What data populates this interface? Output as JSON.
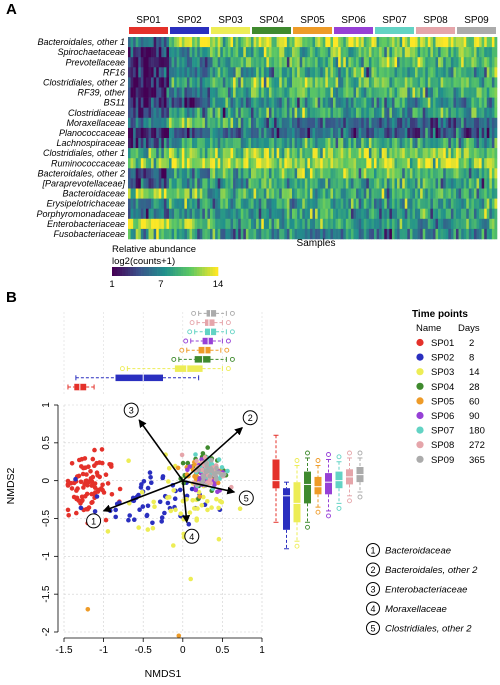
{
  "panels": {
    "a": "A",
    "b": "B"
  },
  "timepoint_colors": {
    "SP01": "#e4312a",
    "SP02": "#2a2fbf",
    "SP03": "#eded55",
    "SP04": "#3f8a2e",
    "SP05": "#ee9b28",
    "SP06": "#9640d6",
    "SP07": "#62d3c4",
    "SP08": "#e5a5aa",
    "SP09": "#ababab"
  },
  "chart_data": [
    {
      "type": "heatmap",
      "columns": [
        "SP01",
        "SP02",
        "SP03",
        "SP04",
        "SP05",
        "SP06",
        "SP07",
        "SP08",
        "SP09"
      ],
      "rows": [
        "Bacteroidales, other 1",
        "Spirochaetaceae",
        "Prevotellaceae",
        "RF16",
        "Clostridiales, other 2",
        "RF39, other",
        "BS11",
        "Clostridiaceae",
        "Moraxellaceae",
        "Planococcaceae",
        "Lachnospiraceae",
        "Clostridiales, other 1",
        "Ruminococcaceae",
        "Bacteroidales, other 2",
        "[Paraprevotellaceae]",
        "Bacteroidaceae",
        "Erysipelotrichaceae",
        "Porphyromonadaceae",
        "Enterobacteriaceae",
        "Fusobacteriaceae"
      ],
      "row_means": [
        [
          6,
          12,
          12,
          12,
          12,
          12,
          12,
          12,
          12
        ],
        [
          2,
          7,
          9,
          10,
          10,
          10,
          10,
          10,
          10
        ],
        [
          2,
          7,
          9,
          10,
          10,
          10,
          10,
          10,
          10
        ],
        [
          2,
          6,
          8,
          9,
          9,
          9,
          9,
          9,
          9
        ],
        [
          2,
          8,
          9,
          10,
          10,
          10,
          10,
          10,
          10
        ],
        [
          2,
          6,
          8,
          9,
          9,
          9,
          9,
          9,
          9
        ],
        [
          2,
          5,
          7,
          8,
          8,
          8,
          8,
          8,
          8
        ],
        [
          4,
          8,
          9,
          8,
          8,
          8,
          8,
          8,
          8
        ],
        [
          6,
          10,
          9,
          6,
          5,
          5,
          5,
          5,
          5
        ],
        [
          3,
          5,
          6,
          5,
          5,
          5,
          5,
          5,
          5
        ],
        [
          5,
          8,
          8,
          8,
          8,
          8,
          8,
          8,
          8
        ],
        [
          9,
          11,
          11,
          11,
          11,
          11,
          11,
          11,
          11
        ],
        [
          11,
          12,
          12,
          12,
          12,
          12,
          12,
          12,
          12
        ],
        [
          4,
          8,
          9,
          10,
          10,
          10,
          10,
          10,
          10
        ],
        [
          4,
          7,
          8,
          9,
          9,
          9,
          9,
          9,
          9
        ],
        [
          12,
          10,
          10,
          9,
          9,
          9,
          9,
          9,
          9
        ],
        [
          6,
          8,
          8,
          8,
          8,
          8,
          8,
          8,
          8
        ],
        [
          6,
          7,
          8,
          8,
          8,
          8,
          8,
          8,
          8
        ],
        [
          13,
          10,
          9,
          8,
          8,
          8,
          8,
          8,
          8
        ],
        [
          9,
          8,
          7,
          7,
          7,
          7,
          7,
          7,
          7
        ]
      ],
      "xlabel": "Samples",
      "colorbar": {
        "title": "Relative abundance",
        "subtitle": "log2(counts+1)",
        "min": 1,
        "max": 14,
        "ticks": [
          "1",
          "7",
          "14"
        ]
      }
    },
    {
      "type": "scatter",
      "xlabel": "NMDS1",
      "ylabel": "NMDS2",
      "xlim": [
        -1.5,
        1
      ],
      "ylim": [
        -2,
        1
      ],
      "xticks": [
        "-1.5",
        "-1",
        "-0.5",
        "0",
        "0.5",
        "1"
      ],
      "yticks": [
        "-2",
        "-1.5",
        "-1",
        "-0.5",
        "0",
        "0.5",
        "1"
      ],
      "grid": true,
      "clusters": [
        {
          "name": "SP01",
          "cx": -1.22,
          "cy": -0.05,
          "sx": 0.15,
          "sy": 0.22,
          "n": 90
        },
        {
          "name": "SP02",
          "cx": -0.45,
          "cy": -0.3,
          "sx": 0.35,
          "sy": 0.2,
          "n": 60
        },
        {
          "name": "SP03",
          "cx": 0.05,
          "cy": -0.25,
          "sx": 0.3,
          "sy": 0.28,
          "n": 50
        },
        {
          "name": "SP04",
          "cx": 0.25,
          "cy": 0.12,
          "sx": 0.15,
          "sy": 0.15,
          "n": 40
        },
        {
          "name": "SP05",
          "cx": 0.28,
          "cy": 0.1,
          "sx": 0.13,
          "sy": 0.13,
          "n": 35
        },
        {
          "name": "SP06",
          "cx": 0.3,
          "cy": 0.08,
          "sx": 0.12,
          "sy": 0.12,
          "n": 35
        },
        {
          "name": "SP07",
          "cx": 0.35,
          "cy": 0.15,
          "sx": 0.1,
          "sy": 0.1,
          "n": 35
        },
        {
          "name": "SP08",
          "cx": 0.33,
          "cy": 0.13,
          "sx": 0.1,
          "sy": 0.1,
          "n": 30
        },
        {
          "name": "SP09",
          "cx": 0.35,
          "cy": 0.1,
          "sx": 0.1,
          "sy": 0.1,
          "n": 30
        }
      ],
      "outliers": [
        {
          "name": "SP05",
          "x": -0.05,
          "y": -2.05
        },
        {
          "name": "SP03",
          "x": 0.1,
          "y": -1.3
        },
        {
          "name": "SP05",
          "x": -1.2,
          "y": -1.7
        }
      ],
      "vectors": [
        {
          "id": "1",
          "label": "Bacteroidaceae",
          "x": -1.0,
          "y": -0.4
        },
        {
          "id": "2",
          "label": "Bacteroidales, other 2",
          "x": 0.75,
          "y": 0.7
        },
        {
          "id": "3",
          "label": "Enterobacteriaceae",
          "x": -0.55,
          "y": 0.8
        },
        {
          "id": "4",
          "label": "Moraxellaceae",
          "x": 0.05,
          "y": -0.55
        },
        {
          "id": "5",
          "label": "Clostridiales, other 2",
          "x": 0.65,
          "y": -0.15
        }
      ],
      "boxplots_nmds1": [
        {
          "name": "SP01",
          "q1": -1.37,
          "median": -1.3,
          "q3": -1.22,
          "whisker_low": -1.45,
          "whisker_high": -1.12
        },
        {
          "name": "SP02",
          "q1": -0.85,
          "median": -0.5,
          "q3": -0.25,
          "whisker_low": -1.35,
          "whisker_high": 0.2
        },
        {
          "name": "SP03",
          "q1": -0.1,
          "median": 0.05,
          "q3": 0.25,
          "whisker_low": -0.7,
          "whisker_high": 0.5
        },
        {
          "name": "SP04",
          "q1": 0.15,
          "median": 0.25,
          "q3": 0.35,
          "whisker_low": -0.05,
          "whisker_high": 0.55
        },
        {
          "name": "SP05",
          "q1": 0.2,
          "median": 0.28,
          "q3": 0.35,
          "whisker_low": 0.05,
          "whisker_high": 0.48
        },
        {
          "name": "SP06",
          "q1": 0.25,
          "median": 0.32,
          "q3": 0.38,
          "whisker_low": 0.1,
          "whisker_high": 0.5
        },
        {
          "name": "SP07",
          "q1": 0.28,
          "median": 0.35,
          "q3": 0.42,
          "whisker_low": 0.15,
          "whisker_high": 0.55
        },
        {
          "name": "SP08",
          "q1": 0.28,
          "median": 0.33,
          "q3": 0.4,
          "whisker_low": 0.18,
          "whisker_high": 0.5
        },
        {
          "name": "SP09",
          "q1": 0.3,
          "median": 0.35,
          "q3": 0.42,
          "whisker_low": 0.2,
          "whisker_high": 0.55
        }
      ],
      "boxplots_nmds2": [
        {
          "name": "SP01",
          "q1": -0.1,
          "median": 0.0,
          "q3": 0.28,
          "whisker_low": -0.55,
          "whisker_high": 0.6
        },
        {
          "name": "SP02",
          "q1": -0.65,
          "median": -0.2,
          "q3": -0.1,
          "whisker_low": -0.9,
          "whisker_high": -0.02
        },
        {
          "name": "SP03",
          "q1": -0.55,
          "median": -0.3,
          "q3": -0.02,
          "whisker_low": -0.8,
          "whisker_high": 0.2
        },
        {
          "name": "SP04",
          "q1": -0.3,
          "median": -0.05,
          "q3": 0.12,
          "whisker_low": -0.55,
          "whisker_high": 0.3
        },
        {
          "name": "SP05",
          "q1": -0.18,
          "median": -0.08,
          "q3": 0.05,
          "whisker_low": -0.35,
          "whisker_high": 0.2
        },
        {
          "name": "SP06",
          "q1": -0.18,
          "median": -0.02,
          "q3": 0.1,
          "whisker_low": -0.4,
          "whisker_high": 0.28
        },
        {
          "name": "SP07",
          "q1": -0.1,
          "median": 0.0,
          "q3": 0.12,
          "whisker_low": -0.3,
          "whisker_high": 0.25
        },
        {
          "name": "SP08",
          "q1": -0.05,
          "median": 0.05,
          "q3": 0.15,
          "whisker_low": -0.2,
          "whisker_high": 0.3
        },
        {
          "name": "SP09",
          "q1": -0.02,
          "median": 0.08,
          "q3": 0.18,
          "whisker_low": -0.15,
          "whisker_high": 0.3
        }
      ],
      "legend": {
        "title": "Time points",
        "header_name": "Name",
        "header_days": "Days",
        "items": [
          {
            "name": "SP01",
            "days": "2"
          },
          {
            "name": "SP02",
            "days": "8"
          },
          {
            "name": "SP03",
            "days": "14"
          },
          {
            "name": "SP04",
            "days": "28"
          },
          {
            "name": "SP05",
            "days": "60"
          },
          {
            "name": "SP06",
            "days": "90"
          },
          {
            "name": "SP07",
            "days": "180"
          },
          {
            "name": "SP08",
            "days": "272"
          },
          {
            "name": "SP09",
            "days": "365"
          }
        ]
      }
    }
  ]
}
